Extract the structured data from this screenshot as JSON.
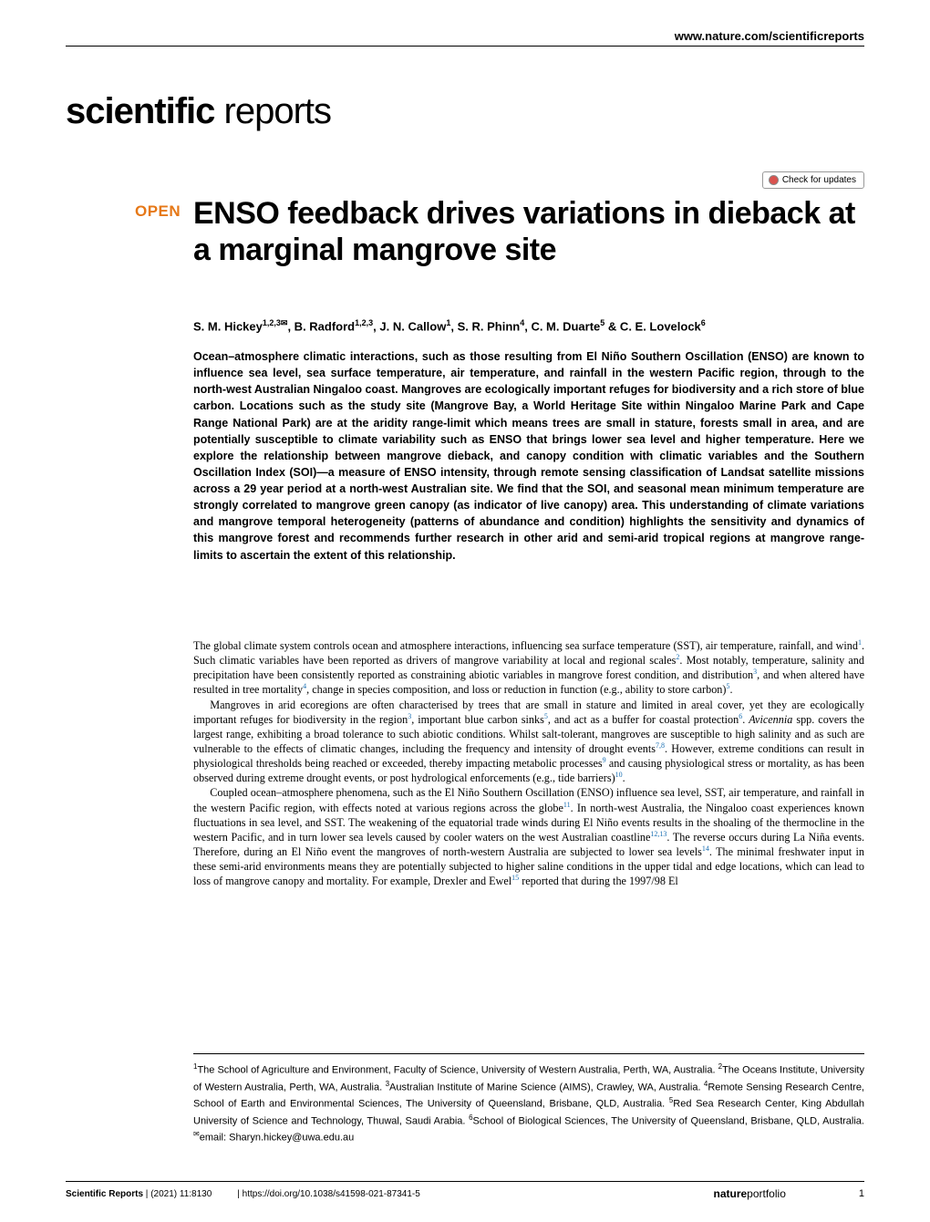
{
  "header": {
    "url": "www.nature.com/scientificreports",
    "journal_logo_bold": "scientific",
    "journal_logo_light": " reports",
    "updates_label": "Check for updates",
    "open_badge": "OPEN"
  },
  "article": {
    "title": "ENSO feedback drives variations in dieback at a marginal mangrove site",
    "authors_html": "S. M. Hickey<sup>1,2,3</sup><span class='env-icon'>✉</span>, B. Radford<sup>1,2,3</sup>, J. N. Callow<sup>1</sup>, S. R. Phinn<sup>4</sup>, C. M. Duarte<sup>5</sup> & C. E. Lovelock<sup>6</sup>",
    "abstract": "Ocean–atmosphere climatic interactions, such as those resulting from El Niño Southern Oscillation (ENSO) are known to influence sea level, sea surface temperature, air temperature, and rainfall in the western Pacific region, through to the north-west Australian Ningaloo coast. Mangroves are ecologically important refuges for biodiversity and a rich store of blue carbon. Locations such as the study site (Mangrove Bay, a World Heritage Site within Ningaloo Marine Park and Cape Range National Park) are at the aridity range-limit which means trees are small in stature, forests small in area, and are potentially susceptible to climate variability such as ENSO that brings lower sea level and higher temperature. Here we explore the relationship between mangrove dieback, and canopy condition with climatic variables and the Southern Oscillation Index (SOI)—a measure of ENSO intensity, through remote sensing classification of Landsat satellite missions across a 29 year period at a north-west Australian site. We find that the SOI, and seasonal mean minimum temperature are strongly correlated to mangrove green canopy (as indicator of live canopy) area. This understanding of climate variations and mangrove temporal heterogeneity (patterns of abundance and condition) highlights the sensitivity and dynamics of this mangrove forest and recommends further research in other arid and semi-arid tropical regions at mangrove range-limits to ascertain the extent of this relationship.",
    "body_p1": "The global climate system controls ocean and atmosphere interactions, influencing sea surface temperature (SST), air temperature, rainfall, and wind<sup>1</sup>. Such climatic variables have been reported as drivers of mangrove variability at local and regional scales<sup>2</sup>. Most notably, temperature, salinity and precipitation have been consistently reported as constraining abiotic variables in mangrove forest condition, and distribution<sup>3</sup>, and when altered have resulted in tree mortality<sup>4</sup>, change in species composition, and loss or reduction in function (e.g., ability to store carbon)<sup>5</sup>.",
    "body_p2": "Mangroves in arid ecoregions are often characterised by trees that are small in stature and limited in areal cover, yet they are ecologically important refuges for biodiversity in the region<sup>3</sup>, important blue carbon sinks<sup>5</sup>, and act as a buffer for coastal protection<sup>6</sup>. <i>Avicennia</i> spp. covers the largest range, exhibiting a broad tolerance to such abiotic conditions. Whilst salt-tolerant, mangroves are susceptible to high salinity and as such are vulnerable to the effects of climatic changes, including the frequency and intensity of drought events<sup>7,8</sup>. However, extreme conditions can result in physiological thresholds being reached or exceeded, thereby impacting metabolic processes<sup>9</sup> and causing physiological stress or mortality, as has been observed during extreme drought events, or post hydrological enforcements (e.g., tide barriers)<sup>10</sup>.",
    "body_p3": "Coupled ocean–atmosphere phenomena, such as the El Niño Southern Oscillation (ENSO) influence sea level, SST, air temperature, and rainfall in the western Pacific region, with effects noted at various regions across the globe<sup>11</sup>. In north-west Australia, the Ningaloo coast experiences known fluctuations in sea level, and SST. The weakening of the equatorial trade winds during El Niño events results in the shoaling of the thermocline in the western Pacific, and in turn lower sea levels caused by cooler waters on the west Australian coastline<sup>12,13</sup>. The reverse occurs during La Niña events. Therefore, during an El Niño event the mangroves of north-western Australia are subjected to lower sea levels<sup>14</sup>. The minimal freshwater input in these semi-arid environments means they are potentially subjected to higher saline conditions in the upper tidal and edge locations, which can lead to loss of mangrove canopy and mortality. For example, Drexler and Ewel<sup>15</sup> reported that during the 1997/98 El",
    "affiliations": "<sup>1</sup>The School of Agriculture and Environment, Faculty of Science, University of Western Australia, Perth, WA, Australia. <sup>2</sup>The Oceans Institute, University of Western Australia, Perth, WA, Australia. <sup>3</sup>Australian Institute of Marine Science (AIMS), Crawley, WA, Australia. <sup>4</sup>Remote Sensing Research Centre, School of Earth and Environmental Sciences, The University of Queensland, Brisbane, QLD, Australia. <sup>5</sup>Red Sea Research Center, King Abdullah University of Science and Technology, Thuwal, Saudi Arabia. <sup>6</sup>School of Biological Sciences, The University of Queensland, Brisbane, QLD, Australia. <sup>✉</sup>email: Sharyn.hickey@uwa.edu.au"
  },
  "footer": {
    "journal": "Scientific Reports",
    "citation": "(2021) 11:8130",
    "doi": "https://doi.org/10.1038/s41598-021-87341-5",
    "portfolio_bold": "nature",
    "portfolio_light": "portfolio",
    "page": "1"
  }
}
